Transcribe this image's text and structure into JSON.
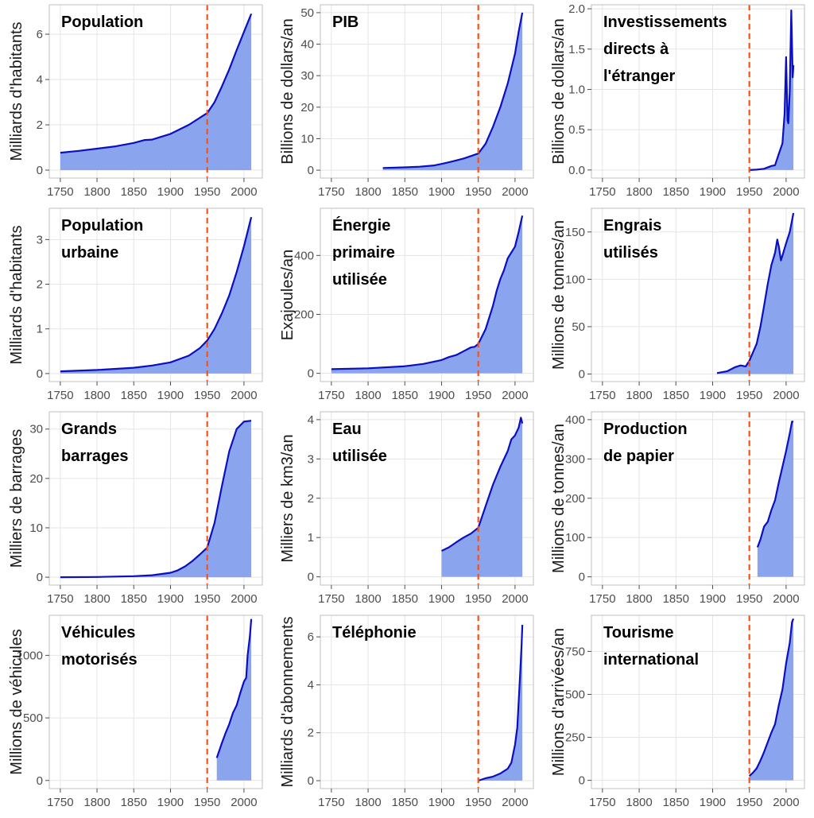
{
  "figure": {
    "colors": {
      "line": "#0b0fbf",
      "fill": "#8aa5ee",
      "reference_line": "#f0541e",
      "grid": "#e5e5e5",
      "panel_border": "#bfbfbf"
    }
  },
  "chart_data": [
    {
      "type": "area",
      "title_lines": [
        "Population"
      ],
      "ylabel": "Milliards d'habitants",
      "xticks": [
        1750,
        1800,
        1850,
        1900,
        1950,
        2000
      ],
      "yticks": [
        0,
        2,
        4,
        6
      ],
      "xlim": [
        1735,
        2025
      ],
      "ylim": [
        -0.35,
        7.3
      ],
      "reference_line_x": 1950,
      "grid": true,
      "x": [
        1750,
        1775,
        1800,
        1825,
        1850,
        1865,
        1875,
        1900,
        1925,
        1950,
        1960,
        1970,
        1980,
        1990,
        2000,
        2010
      ],
      "y": [
        0.77,
        0.85,
        0.95,
        1.05,
        1.2,
        1.33,
        1.35,
        1.6,
        2.0,
        2.52,
        3.0,
        3.7,
        4.45,
        5.3,
        6.1,
        6.9
      ]
    },
    {
      "type": "area",
      "title_lines": [
        "PIB"
      ],
      "ylabel": "Billions de dollars/an",
      "xticks": [
        1750,
        1800,
        1850,
        1900,
        1950,
        2000
      ],
      "yticks": [
        0,
        10,
        20,
        30,
        40,
        50
      ],
      "xlim": [
        1735,
        2025
      ],
      "ylim": [
        -2.5,
        52.5
      ],
      "reference_line_x": 1950,
      "grid": true,
      "x": [
        1820,
        1850,
        1870,
        1890,
        1900,
        1913,
        1930,
        1940,
        1950,
        1960,
        1970,
        1980,
        1990,
        2000,
        2005,
        2010
      ],
      "y": [
        0.7,
        0.9,
        1.1,
        1.5,
        2.0,
        2.7,
        3.7,
        4.5,
        5.3,
        8.4,
        13.8,
        20.0,
        27.5,
        37.0,
        44.0,
        50.0
      ]
    },
    {
      "type": "area",
      "title_lines": [
        "Investissements",
        "directs à",
        "l'étranger"
      ],
      "ylabel": "Billions de dollars/an",
      "xticks": [
        1750,
        1800,
        1850,
        1900,
        1950,
        2000
      ],
      "yticks": [
        "0.0",
        "0.5",
        "1.0",
        "1.5",
        "2.0"
      ],
      "xlim": [
        1735,
        2025
      ],
      "ylim": [
        -0.1,
        2.05
      ],
      "reference_line_x": 1950,
      "grid": true,
      "x": [
        1950,
        1960,
        1970,
        1980,
        1985,
        1990,
        1995,
        1998,
        2000,
        2002,
        2003,
        2005,
        2007,
        2009,
        2010
      ],
      "y": [
        0.0,
        0.005,
        0.015,
        0.05,
        0.06,
        0.2,
        0.33,
        0.7,
        1.4,
        0.62,
        0.58,
        0.98,
        1.98,
        1.15,
        1.3
      ]
    },
    {
      "type": "area",
      "title_lines": [
        "Population",
        "urbaine"
      ],
      "ylabel": "Milliards d'habitants",
      "xticks": [
        1750,
        1800,
        1850,
        1900,
        1950,
        2000
      ],
      "yticks": [
        0,
        1,
        2,
        3
      ],
      "xlim": [
        1735,
        2025
      ],
      "ylim": [
        -0.18,
        3.7
      ],
      "reference_line_x": 1950,
      "grid": true,
      "x": [
        1750,
        1800,
        1850,
        1875,
        1900,
        1925,
        1940,
        1950,
        1960,
        1970,
        1980,
        1990,
        2000,
        2010
      ],
      "y": [
        0.05,
        0.08,
        0.13,
        0.18,
        0.25,
        0.4,
        0.57,
        0.74,
        1.0,
        1.35,
        1.75,
        2.27,
        2.85,
        3.5
      ]
    },
    {
      "type": "area",
      "title_lines": [
        "Énergie",
        "primaire",
        "utilisée"
      ],
      "ylabel": "Exajoules/an",
      "xticks": [
        1750,
        1800,
        1850,
        1900,
        1950,
        2000
      ],
      "yticks": [
        0,
        200,
        400
      ],
      "xlim": [
        1735,
        2025
      ],
      "ylim": [
        -28,
        560
      ],
      "reference_line_x": 1950,
      "grid": true,
      "x": [
        1750,
        1800,
        1850,
        1875,
        1900,
        1910,
        1920,
        1930,
        1940,
        1945,
        1950,
        1960,
        1970,
        1975,
        1980,
        1985,
        1990,
        2000,
        2005,
        2010
      ],
      "y": [
        14,
        17,
        24,
        32,
        45,
        55,
        62,
        75,
        88,
        90,
        100,
        150,
        230,
        280,
        320,
        350,
        390,
        430,
        480,
        535
      ]
    },
    {
      "type": "area",
      "title_lines": [
        "Engrais",
        "utilisés"
      ],
      "ylabel": "Millions de tonnes/an",
      "xticks": [
        1750,
        1800,
        1850,
        1900,
        1950,
        2000
      ],
      "yticks": [
        0,
        50,
        100,
        150
      ],
      "xlim": [
        1735,
        2025
      ],
      "ylim": [
        -8,
        175
      ],
      "reference_line_x": 1950,
      "grid": true,
      "x": [
        1906,
        1920,
        1930,
        1938,
        1945,
        1950,
        1955,
        1960,
        1965,
        1970,
        1975,
        1980,
        1985,
        1988,
        1990,
        1993,
        1995,
        2000,
        2005,
        2008,
        2010
      ],
      "y": [
        1,
        3,
        7,
        9,
        8,
        14,
        23,
        32,
        50,
        72,
        95,
        115,
        128,
        142,
        135,
        120,
        125,
        138,
        150,
        162,
        170
      ]
    },
    {
      "type": "area",
      "title_lines": [
        "Grands",
        "barrages"
      ],
      "ylabel": "Milliers de barrages",
      "xticks": [
        1750,
        1800,
        1850,
        1900,
        1950,
        2000
      ],
      "yticks": [
        0,
        10,
        20,
        30
      ],
      "xlim": [
        1735,
        2025
      ],
      "ylim": [
        -1.6,
        33.5
      ],
      "reference_line_x": 1950,
      "grid": true,
      "x": [
        1750,
        1800,
        1850,
        1875,
        1900,
        1910,
        1920,
        1930,
        1940,
        1950,
        1960,
        1970,
        1980,
        1990,
        2000,
        2010
      ],
      "y": [
        0.0,
        0.05,
        0.2,
        0.4,
        0.9,
        1.4,
        2.2,
        3.3,
        4.6,
        6.0,
        11.0,
        18.5,
        25.5,
        30.0,
        31.5,
        31.7
      ]
    },
    {
      "type": "area",
      "title_lines": [
        "Eau",
        "utilisée"
      ],
      "ylabel": "Milliers de km3/an",
      "xticks": [
        1750,
        1800,
        1850,
        1900,
        1950,
        2000
      ],
      "yticks": [
        0,
        1,
        2,
        3,
        4
      ],
      "xlim": [
        1735,
        2025
      ],
      "ylim": [
        -0.21,
        4.2
      ],
      "reference_line_x": 1950,
      "grid": true,
      "x": [
        1900,
        1910,
        1920,
        1930,
        1940,
        1950,
        1960,
        1970,
        1980,
        1990,
        1995,
        2000,
        2005,
        2008,
        2010
      ],
      "y": [
        0.66,
        0.75,
        0.88,
        1.0,
        1.1,
        1.25,
        1.8,
        2.35,
        2.8,
        3.2,
        3.5,
        3.6,
        3.8,
        4.05,
        3.9
      ]
    },
    {
      "type": "area",
      "title_lines": [
        "Production",
        "de papier"
      ],
      "ylabel": "Millions de tonnes/an",
      "xticks": [
        1750,
        1800,
        1850,
        1900,
        1950,
        2000
      ],
      "yticks": [
        0,
        100,
        200,
        300,
        400
      ],
      "xlim": [
        1735,
        2025
      ],
      "ylim": [
        -21,
        420
      ],
      "reference_line_x": 1950,
      "grid": true,
      "x": [
        1961,
        1965,
        1970,
        1975,
        1980,
        1985,
        1990,
        1995,
        2000,
        2005,
        2008,
        2010
      ],
      "y": [
        75,
        95,
        128,
        140,
        170,
        195,
        240,
        280,
        320,
        365,
        395,
        395
      ]
    },
    {
      "type": "area",
      "title_lines": [
        "Véhicules",
        "motorisés"
      ],
      "ylabel": "Millions de véhicules",
      "xticks": [
        1750,
        1800,
        1850,
        1900,
        1950,
        2000
      ],
      "yticks": [
        0,
        500,
        1000
      ],
      "xlim": [
        1735,
        2025
      ],
      "ylim": [
        -65,
        1320
      ],
      "reference_line_x": 1950,
      "grid": true,
      "x": [
        1963,
        1970,
        1975,
        1980,
        1985,
        1990,
        1995,
        2000,
        2003,
        2005,
        2008,
        2010
      ],
      "y": [
        180,
        300,
        380,
        450,
        540,
        600,
        700,
        790,
        820,
        1000,
        1150,
        1290
      ]
    },
    {
      "type": "area",
      "title_lines": [
        "Téléphonie"
      ],
      "ylabel": "Milliards d'abonnements",
      "xticks": [
        1750,
        1800,
        1850,
        1900,
        1950,
        2000
      ],
      "yticks": [
        0,
        2,
        4,
        6
      ],
      "xlim": [
        1735,
        2025
      ],
      "ylim": [
        -0.33,
        6.9
      ],
      "reference_line_x": 1950,
      "grid": true,
      "x": [
        1950,
        1960,
        1970,
        1980,
        1990,
        1995,
        2000,
        2003,
        2005,
        2007,
        2009,
        2010
      ],
      "y": [
        0.0,
        0.1,
        0.17,
        0.3,
        0.5,
        0.75,
        1.5,
        2.2,
        3.3,
        4.5,
        5.7,
        6.5
      ]
    },
    {
      "type": "area",
      "title_lines": [
        "Tourisme",
        "international"
      ],
      "ylabel": "Millions d'arrivées/an",
      "xticks": [
        1750,
        1800,
        1850,
        1900,
        1950,
        2000
      ],
      "yticks": [
        0,
        250,
        500,
        750
      ],
      "xlim": [
        1735,
        2025
      ],
      "ylim": [
        -48,
        960
      ],
      "reference_line_x": 1950,
      "grid": true,
      "x": [
        1950,
        1955,
        1960,
        1965,
        1970,
        1975,
        1980,
        1985,
        1990,
        1995,
        2000,
        2005,
        2008,
        2010
      ],
      "y": [
        25,
        45,
        70,
        115,
        165,
        222,
        278,
        327,
        436,
        528,
        680,
        800,
        920,
        940
      ]
    }
  ]
}
